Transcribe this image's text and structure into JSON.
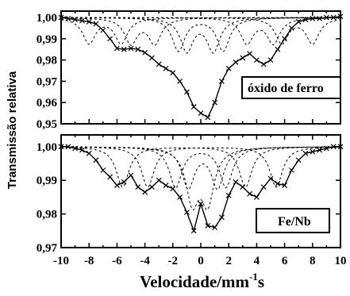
{
  "chart_data": [
    {
      "type": "scatter",
      "panel": "top",
      "annotation": "óxido de ferro",
      "xlim": [
        -10,
        10
      ],
      "ylim": [
        0.95,
        1.003
      ],
      "yticks": [
        "0,95",
        "0,96",
        "0,97",
        "0,98",
        "0,99",
        "1,00"
      ],
      "series": [
        {
          "kind": "points",
          "marker": "x",
          "x": [
            -10,
            -9.5,
            -9,
            -8.5,
            -8,
            -7.5,
            -7,
            -6.5,
            -6,
            -5.5,
            -5,
            -4.5,
            -4,
            -3.5,
            -3,
            -2.5,
            -2,
            -1.5,
            -1,
            -0.5,
            0,
            0.5,
            1,
            1.5,
            2,
            2.5,
            3,
            3.5,
            4,
            4.5,
            5,
            5.5,
            6,
            6.5,
            7,
            7.5,
            8,
            8.5,
            9,
            9.5,
            10
          ],
          "y": [
            1.0,
            0.9995,
            0.999,
            0.9985,
            0.998,
            0.997,
            0.994,
            0.99,
            0.9855,
            0.985,
            0.9855,
            0.985,
            0.9835,
            0.981,
            0.978,
            0.976,
            0.974,
            0.97,
            0.965,
            0.958,
            0.955,
            0.953,
            0.96,
            0.97,
            0.976,
            0.979,
            0.981,
            0.983,
            0.98,
            0.978,
            0.98,
            0.985,
            0.99,
            0.995,
            0.998,
            0.999,
            0.9995,
            0.9995,
            1.0,
            1.0,
            1.0005
          ]
        },
        {
          "kind": "fit",
          "style": "solid"
        },
        {
          "kind": "subspectrum",
          "style": "dashed"
        }
      ]
    },
    {
      "type": "scatter",
      "panel": "bottom",
      "annotation": "Fe/Nb",
      "xlim": [
        -10,
        10
      ],
      "ylim": [
        0.97,
        1.0035
      ],
      "yticks": [
        "0,97",
        "0,98",
        "0,99",
        "1,00"
      ],
      "xticks": [
        "-10",
        "-8",
        "-6",
        "-4",
        "-2",
        "0",
        "2",
        "4",
        "6",
        "8",
        "10"
      ],
      "series": [
        {
          "kind": "points",
          "marker": "x",
          "x": [
            -10,
            -9.5,
            -9,
            -8.5,
            -8,
            -7.5,
            -7,
            -6.5,
            -6,
            -5.5,
            -5,
            -4.5,
            -4,
            -3.5,
            -3,
            -2.5,
            -2,
            -1.5,
            -1,
            -0.5,
            0,
            0.5,
            1,
            1.5,
            2,
            2.5,
            3,
            3.5,
            4,
            4.5,
            5,
            5.5,
            6,
            6.5,
            7,
            7.5,
            8,
            8.5,
            9,
            9.5,
            10
          ],
          "y": [
            1.0,
            1.0,
            0.9995,
            0.999,
            0.998,
            0.996,
            0.993,
            0.991,
            0.9885,
            0.9895,
            0.9915,
            0.988,
            0.9865,
            0.988,
            0.99,
            0.9885,
            0.9875,
            0.985,
            0.9805,
            0.975,
            0.983,
            0.9765,
            0.976,
            0.979,
            0.9855,
            0.9895,
            0.988,
            0.986,
            0.985,
            0.988,
            0.9905,
            0.989,
            0.9885,
            0.993,
            0.996,
            0.998,
            0.9985,
            0.999,
            0.9995,
            1.0,
            1.0
          ]
        },
        {
          "kind": "fit",
          "style": "solid"
        },
        {
          "kind": "subspectrum",
          "style": "dashed"
        }
      ]
    }
  ],
  "axes": {
    "xlabel": "Velocidade/mm",
    "xlabel_sup": "-1",
    "xlabel_tail": "s",
    "ylabel": "Transmissão relativa"
  }
}
